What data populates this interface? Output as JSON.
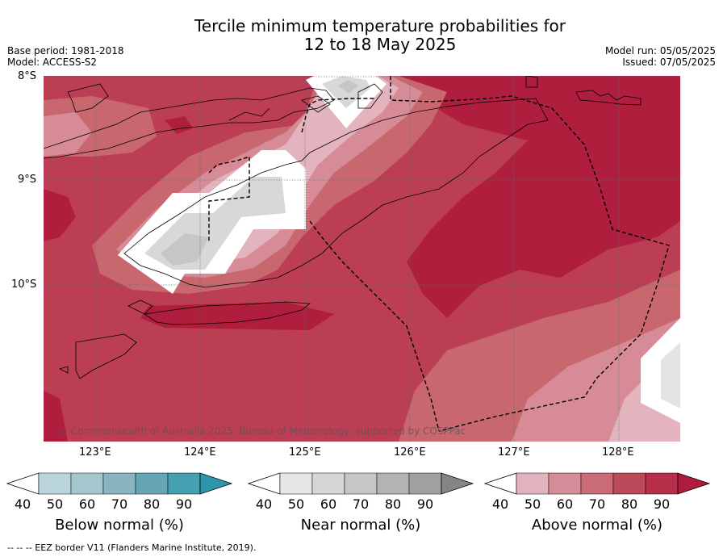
{
  "title": {
    "line1": "Tercile minimum temperature probabilities for",
    "line2": "12 to 18 May 2025"
  },
  "meta": {
    "base_period": "Base period: 1981-2018",
    "model": "Model: ACCESS-S2",
    "model_run": "Model run: 05/05/2025",
    "issued": "Issued: 07/05/2025"
  },
  "map": {
    "lat_labels": [
      "8°S",
      "9°S",
      "10°S"
    ],
    "lon_labels": [
      "123°E",
      "124°E",
      "125°E",
      "126°E",
      "127°E",
      "128°E"
    ],
    "copyright": "© Commonwealth of Australia 2025, Bureau of Meteorology, supported by COSPPac",
    "background_category": "Above normal 70-80%"
  },
  "colorbars": [
    {
      "title": "Below normal (%)",
      "ticks": [
        "40",
        "50",
        "60",
        "70",
        "80",
        "90"
      ],
      "colors": [
        "#ffffff",
        "#bbd5dc",
        "#a4c7ce",
        "#88b5c0",
        "#66a6b4",
        "#45a0b1",
        "#2c97ac"
      ]
    },
    {
      "title": "Near normal (%)",
      "ticks": [
        "40",
        "50",
        "60",
        "70",
        "80",
        "90"
      ],
      "colors": [
        "#ffffff",
        "#e6e6e6",
        "#d6d6d6",
        "#c6c6c6",
        "#b3b3b3",
        "#a0a0a0",
        "#858585"
      ]
    },
    {
      "title": "Above normal (%)",
      "ticks": [
        "40",
        "50",
        "60",
        "70",
        "80",
        "90"
      ],
      "colors": [
        "#ffffff",
        "#e2b3bd",
        "#d68c98",
        "#c96c78",
        "#bb4a5b",
        "#b72f4a",
        "#b01b3c"
      ]
    }
  ],
  "footnote": "--  --  -- EEZ border V11 (Flanders Marine Institute, 2019)."
}
